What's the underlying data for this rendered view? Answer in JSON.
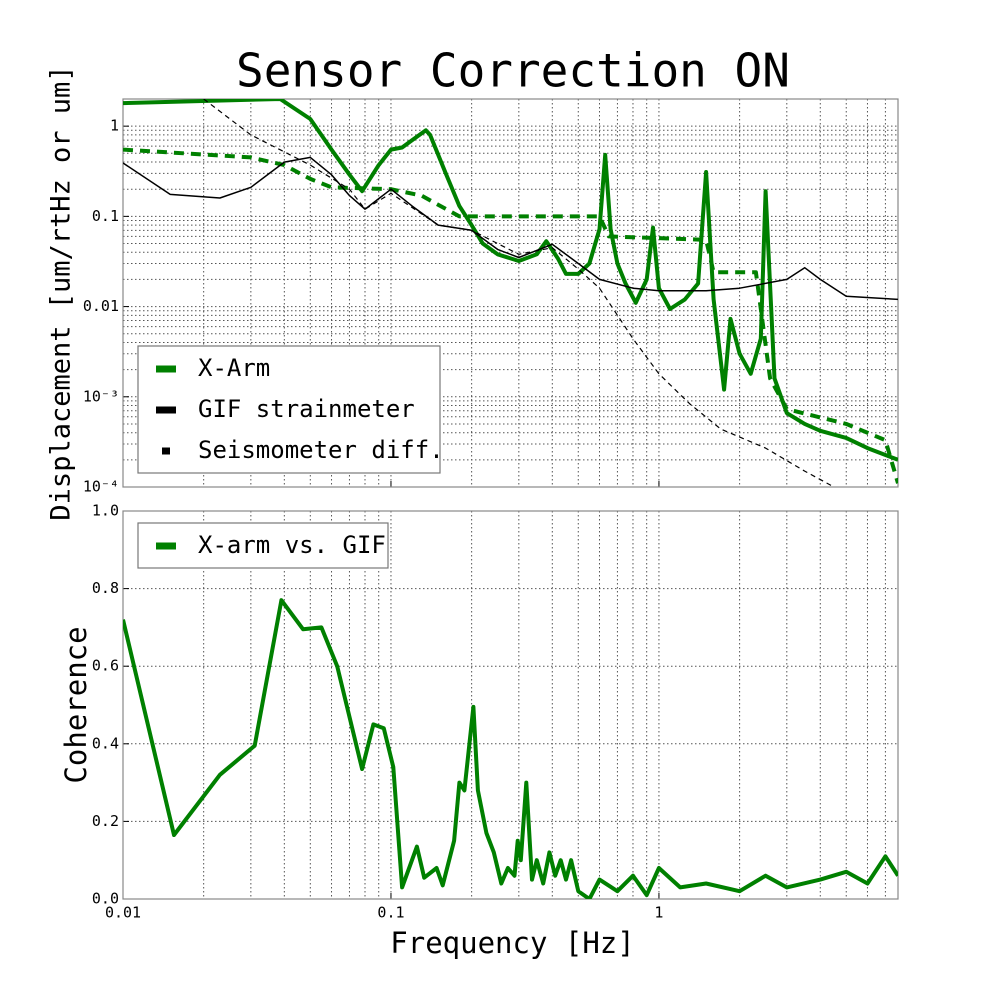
{
  "chart_data": [
    {
      "type": "line",
      "title": "Sensor Correction ON",
      "ylabel": "Displacement [um/rtHz or um]",
      "xlog": true,
      "ylog": true,
      "xlim": [
        0.01,
        7.8
      ],
      "ylim": [
        0.0001,
        2
      ],
      "xticks": [
        0.01,
        0.1,
        1
      ],
      "xtick_labels": false,
      "yticks": [
        {
          "value": 0.0001,
          "label": "10⁻⁴"
        },
        {
          "value": 0.001,
          "label": "10⁻³"
        },
        0.01,
        0.1,
        1
      ],
      "grid": true,
      "minor_grid": true,
      "legend": "lower left",
      "series": [
        {
          "name": "X-Arm",
          "color": "#008000",
          "linestyle": "solid",
          "linewidth": 4,
          "x": [
            0.01,
            0.0386,
            0.05,
            0.06,
            0.07,
            0.078,
            0.09,
            0.1,
            0.11,
            0.12,
            0.135,
            0.14,
            0.16,
            0.18,
            0.2,
            0.22,
            0.25,
            0.3,
            0.35,
            0.38,
            0.42,
            0.45,
            0.5,
            0.55,
            0.6,
            0.63,
            0.66,
            0.7,
            0.75,
            0.82,
            0.9,
            0.95,
            1.0,
            1.1,
            1.25,
            1.4,
            1.5,
            1.6,
            1.75,
            1.85,
            2.0,
            2.2,
            2.4,
            2.5,
            2.7,
            3.0,
            3.5,
            4,
            5,
            6,
            7.8
          ],
          "values": [
            1.8,
            2,
            1.2,
            0.55,
            0.29,
            0.19,
            0.37,
            0.55,
            0.58,
            0.7,
            0.9,
            0.8,
            0.3,
            0.13,
            0.08,
            0.05,
            0.038,
            0.032,
            0.038,
            0.053,
            0.034,
            0.023,
            0.023,
            0.03,
            0.072,
            0.48,
            0.072,
            0.03,
            0.018,
            0.011,
            0.02,
            0.075,
            0.016,
            0.0094,
            0.012,
            0.018,
            0.31,
            0.012,
            0.0012,
            0.0073,
            0.003,
            0.0018,
            0.0044,
            0.19,
            0.0016,
            0.00066,
            0.0005,
            0.00042,
            0.00035,
            0.00027,
            0.0002
          ]
        },
        {
          "color": "#008000",
          "linestyle": "dashed",
          "linewidth": 4,
          "x": [
            0.01,
            0.03,
            0.04,
            0.05,
            0.06,
            0.1,
            0.13,
            0.18,
            0.6,
            0.65,
            1.5,
            1.6,
            2.3,
            2.6,
            3,
            5,
            7,
            7.8
          ],
          "values": [
            0.55,
            0.45,
            0.37,
            0.26,
            0.21,
            0.2,
            0.17,
            0.1,
            0.1,
            0.06,
            0.055,
            0.024,
            0.024,
            0.0016,
            0.00073,
            0.0005,
            0.00033,
            0.00011
          ]
        },
        {
          "name": "GIF strainmeter",
          "color": "#000000",
          "linestyle": "solid",
          "linewidth": 1.5,
          "x": [
            0.01,
            0.015,
            0.023,
            0.03,
            0.04,
            0.05,
            0.06,
            0.07,
            0.08,
            0.1,
            0.12,
            0.15,
            0.2,
            0.25,
            0.3,
            0.4,
            0.5,
            0.6,
            0.8,
            1,
            1.5,
            2,
            3,
            3.5,
            4,
            5,
            7.8
          ],
          "values": [
            0.39,
            0.175,
            0.16,
            0.21,
            0.4,
            0.45,
            0.29,
            0.17,
            0.12,
            0.2,
            0.13,
            0.08,
            0.07,
            0.043,
            0.035,
            0.049,
            0.03,
            0.02,
            0.016,
            0.015,
            0.015,
            0.016,
            0.02,
            0.027,
            0.02,
            0.013,
            0.012
          ]
        },
        {
          "name": "Seismometer diff.",
          "color": "#000000",
          "linestyle": "dashed",
          "linewidth": 1.2,
          "x": [
            0.02,
            0.03,
            0.05,
            0.07,
            0.08,
            0.1,
            0.15,
            0.2,
            0.3,
            0.4,
            0.5,
            0.6,
            0.8,
            1,
            1.3,
            1.7,
            2.5,
            3.5,
            4.5
          ],
          "values": [
            2,
            0.8,
            0.37,
            0.2,
            0.12,
            0.18,
            0.08,
            0.07,
            0.038,
            0.045,
            0.026,
            0.016,
            0.0044,
            0.0018,
            0.00084,
            0.00044,
            0.00027,
            0.00015,
            0.0001
          ]
        }
      ]
    },
    {
      "type": "line",
      "ylabel": "Coherence",
      "xlabel": "Frequency [Hz]",
      "xlog": true,
      "ylog": false,
      "xlim": [
        0.01,
        7.8
      ],
      "ylim": [
        0,
        1
      ],
      "xticks": [
        0.01,
        0.1,
        1
      ],
      "xtick_labels": true,
      "yticks": [
        {
          "value": 0,
          "label": "0.0"
        },
        0.2,
        0.4,
        0.6,
        0.8,
        {
          "value": 1,
          "label": "1.0"
        }
      ],
      "grid": true,
      "minor_grid": true,
      "legend": "upper left",
      "series": [
        {
          "name": "X-arm vs. GIF",
          "color": "#008000",
          "linestyle": "solid",
          "linewidth": 4,
          "x": [
            0.01,
            0.0155,
            0.023,
            0.031,
            0.039,
            0.047,
            0.055,
            0.063,
            0.078,
            0.086,
            0.094,
            0.102,
            0.11,
            0.125,
            0.133,
            0.148,
            0.156,
            0.172,
            0.18,
            0.188,
            0.203,
            0.211,
            0.227,
            0.242,
            0.258,
            0.273,
            0.289,
            0.297,
            0.305,
            0.32,
            0.336,
            0.35,
            0.37,
            0.39,
            0.41,
            0.43,
            0.45,
            0.47,
            0.5,
            0.55,
            0.6,
            0.7,
            0.8,
            0.9,
            1.0,
            1.2,
            1.5,
            2.0,
            2.5,
            3,
            4,
            5,
            6,
            7,
            7.8
          ],
          "values": [
            0.72,
            0.165,
            0.32,
            0.395,
            0.77,
            0.695,
            0.7,
            0.6,
            0.335,
            0.45,
            0.44,
            0.34,
            0.03,
            0.135,
            0.055,
            0.08,
            0.035,
            0.15,
            0.3,
            0.28,
            0.495,
            0.28,
            0.17,
            0.12,
            0.04,
            0.08,
            0.06,
            0.15,
            0.1,
            0.3,
            0.05,
            0.1,
            0.04,
            0.12,
            0.06,
            0.1,
            0.05,
            0.1,
            0.02,
            0.0,
            0.05,
            0.02,
            0.06,
            0.01,
            0.08,
            0.03,
            0.04,
            0.02,
            0.06,
            0.03,
            0.05,
            0.07,
            0.04,
            0.11,
            0.06
          ]
        }
      ]
    }
  ]
}
